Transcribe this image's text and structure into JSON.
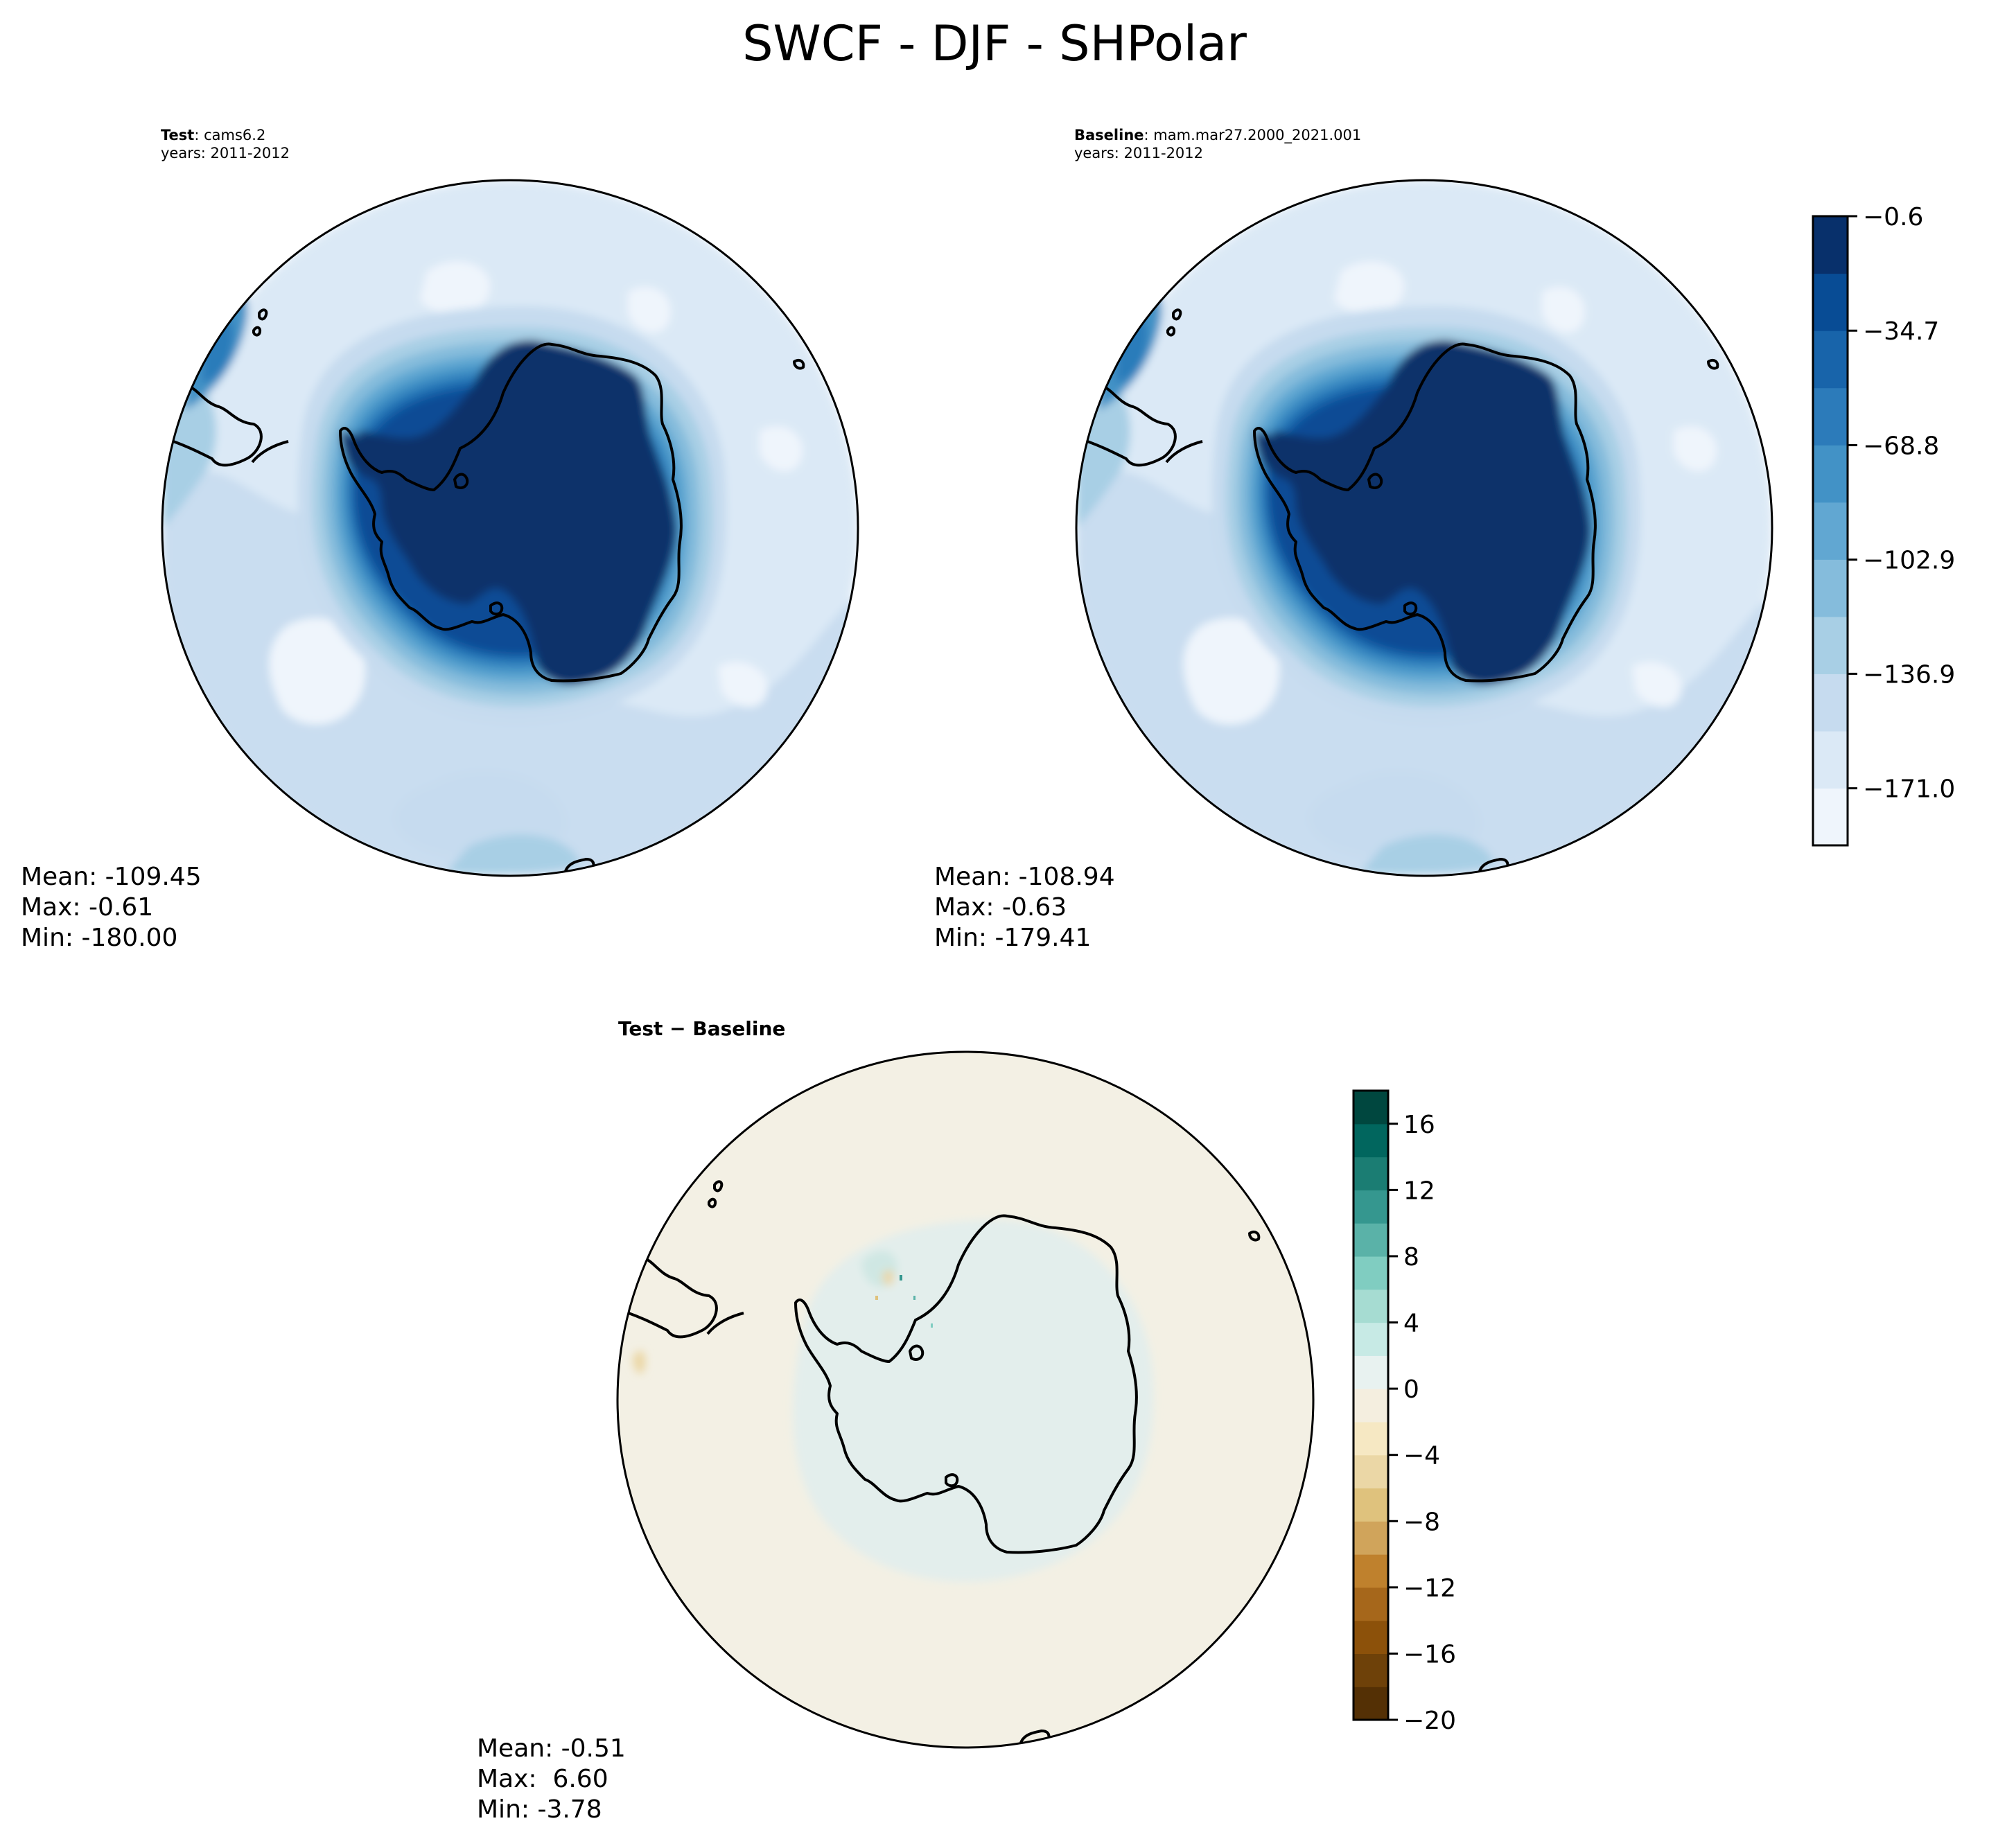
{
  "figure": {
    "title": "SWCF - DJF - SHPolar"
  },
  "panels": {
    "test": {
      "label": "Test",
      "case": "cams6.2",
      "years": "years: 2011-2012",
      "stats": {
        "mean": "Mean: -109.45",
        "max": "Max: -0.61",
        "min": "Min: -180.00"
      }
    },
    "baseline": {
      "label": "Baseline",
      "case": "mam.mar27.2000_2021.001",
      "years": "years: 2011-2012",
      "stats": {
        "mean": "Mean: -108.94",
        "max": "Max: -0.63",
        "min": "Min: -179.41"
      }
    },
    "diff": {
      "title": "Test − Baseline",
      "stats": {
        "mean": "Mean: -0.51",
        "max": "Max:  6.60",
        "min": "Min: -3.78"
      }
    }
  },
  "chart_data": [
    {
      "type": "heatmap",
      "projection": "south-polar-stereographic",
      "panel": "test",
      "colormap": "Blues_r",
      "mean": -109.45,
      "max": -0.61,
      "min": -180.0
    },
    {
      "type": "heatmap",
      "projection": "south-polar-stereographic",
      "panel": "baseline",
      "colormap": "Blues_r",
      "mean": -108.94,
      "max": -0.63,
      "min": -179.41,
      "colorbar": {
        "range": [
          -188,
          -0.6
        ],
        "ticks": [
          -0.6,
          -34.7,
          -68.8,
          -102.9,
          -136.9,
          -171.0
        ],
        "tick_labels": [
          "−0.6",
          "−34.7",
          "−68.8",
          "−102.9",
          "−136.9",
          "−171.0"
        ],
        "colors": [
          "#eff5fc",
          "#dbe9f6",
          "#c6dbef",
          "#a8cfe5",
          "#85bcdc",
          "#61a7d2",
          "#4292c6",
          "#2c7bba",
          "#1864aa",
          "#084c95",
          "#08306b"
        ]
      }
    },
    {
      "type": "heatmap",
      "projection": "south-polar-stereographic",
      "panel": "diff",
      "colormap": "BrBG",
      "mean": -0.51,
      "max": 6.6,
      "min": -3.78,
      "colorbar": {
        "range": [
          -20,
          18
        ],
        "ticks": [
          16,
          12,
          8,
          4,
          0,
          -4,
          -8,
          -12,
          -16,
          -20
        ],
        "tick_labels": [
          "16",
          "12",
          "8",
          "4",
          "0",
          "−4",
          "−8",
          "−12",
          "−16",
          "−20"
        ],
        "colors": [
          "#543005",
          "#6e4109",
          "#8c510a",
          "#a6671b",
          "#bf812d",
          "#d0a45b",
          "#dfc27d",
          "#ebd7a6",
          "#f6e8c3",
          "#f4eedf",
          "#e8f2f0",
          "#c7eae5",
          "#a6dcd2",
          "#80cdc1",
          "#5ab2a8",
          "#35978f",
          "#1b7d73",
          "#01665e",
          "#00473f"
        ]
      }
    }
  ],
  "colors": {
    "diff_bg": "#f3f0e4",
    "diff_pos_patch": "#e3eeec",
    "antarctica_dark": "#08306b"
  }
}
